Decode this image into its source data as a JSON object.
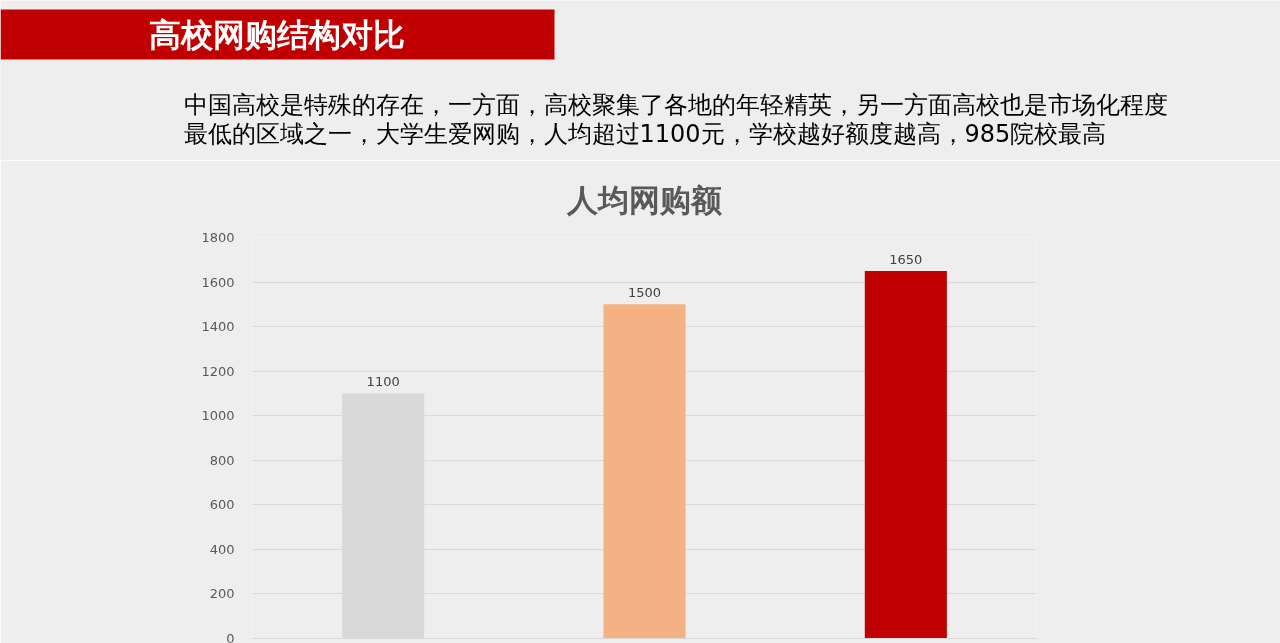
{
  "chart_data": {
    "type": "bar",
    "title": "人均网购额",
    "annotations": [
      "高校网购结构对比",
      "中国高校是特殊的存在，一方面，高校聚集了各地的年轻精英，另一方面高校也是市场化程度",
      "最低的区域之一，大学生爱网购，人均超过1100元，学校越好额度越高，985院校最高"
    ],
    "categories": [
      null,
      null,
      null
    ],
    "values": [
      1100,
      1500,
      1650
    ],
    "colors": [
      "#d9d9d9",
      "#f4b183",
      "#c00000"
    ],
    "ylim": [
      0,
      1800
    ],
    "yticks": [
      0,
      200,
      400,
      600,
      800,
      1000,
      1200,
      1400,
      1600,
      1800
    ],
    "grid": "y",
    "data_labels": true
  }
}
